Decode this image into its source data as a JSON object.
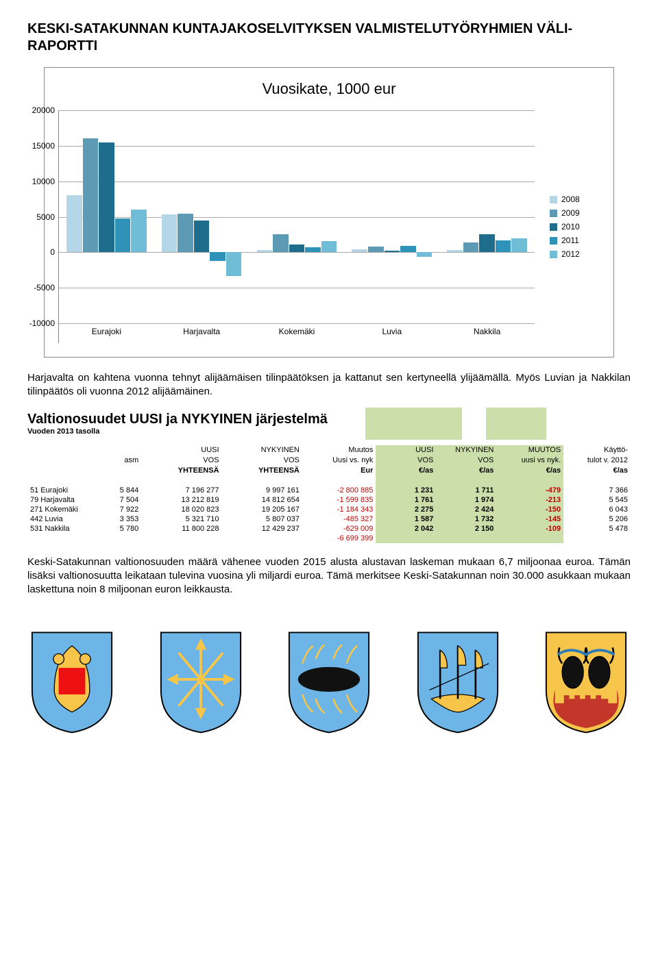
{
  "doc_title": "KESKI-SATAKUNNAN KUNTAJAKOSELVITYKSEN VALMISTELUTYÖRYHMIEN VÄLI-RAPORTTI",
  "chart": {
    "title": "Vuosikate, 1000 eur",
    "ymin": -10000,
    "ymax": 20000,
    "ystep": 5000,
    "categories": [
      "Eurajoki",
      "Harjavalta",
      "Kokemäki",
      "Luvia",
      "Nakkila"
    ],
    "series": [
      {
        "label": "2008",
        "color": "#b5d6e6"
      },
      {
        "label": "2009",
        "color": "#5c9bb3"
      },
      {
        "label": "2010",
        "color": "#1f6d8c"
      },
      {
        "label": "2011",
        "color": "#2f92b8"
      },
      {
        "label": "2012",
        "color": "#6fbdd6"
      }
    ],
    "data": [
      [
        8000,
        16000,
        15500,
        4800,
        6000
      ],
      [
        5300,
        5400,
        4500,
        -1200,
        -3300
      ],
      [
        300,
        2500,
        1100,
        700,
        1600
      ],
      [
        400,
        800,
        200,
        900,
        -600
      ],
      [
        300,
        1400,
        2500,
        1700,
        2000
      ]
    ]
  },
  "para1": "Harjavalta on kahtena vuonna tehnyt alijäämäisen tilinpäätöksen ja kattanut sen kertyneellä ylijäämällä. Myös Luvian ja Nakkilan tilinpäätös oli vuonna 2012 alijäämäinen.",
  "vos": {
    "title": "Valtionosuudet UUSI ja NYKYINEN järjestelmä",
    "subtitle": "Vuoden 2013 tasolla",
    "head": {
      "r1": [
        "",
        "",
        "UUSI",
        "NYKYINEN",
        "Muutos",
        "UUSI",
        "NYKYINEN",
        "MUUTOS",
        "Käyttö-"
      ],
      "r2": [
        "",
        "asm",
        "VOS",
        "VOS",
        "Uusi vs. nyk",
        "VOS",
        "VOS",
        "uusi vs nyk.",
        "tulot v. 2012"
      ],
      "r3": [
        "",
        "",
        "YHTEENSÄ",
        "YHTEENSÄ",
        "Eur",
        "€/as",
        "€/as",
        "€/as",
        "€/as"
      ]
    },
    "rows": [
      {
        "code": "51",
        "muni": "Eurajoki",
        "asm": "5 844",
        "uusi": "7 196 277",
        "nyk": "9 997 161",
        "diff": "-2 800 885",
        "uusi_as": "1 231",
        "nyk_as": "1 711",
        "diff_as": "-479",
        "kt": "7 366"
      },
      {
        "code": "79",
        "muni": "Harjavalta",
        "asm": "7 504",
        "uusi": "13 212 819",
        "nyk": "14 812 654",
        "diff": "-1 599 835",
        "uusi_as": "1 761",
        "nyk_as": "1 974",
        "diff_as": "-213",
        "kt": "5 545"
      },
      {
        "code": "271",
        "muni": "Kokemäki",
        "asm": "7 922",
        "uusi": "18 020 823",
        "nyk": "19 205 167",
        "diff": "-1 184 343",
        "uusi_as": "2 275",
        "nyk_as": "2 424",
        "diff_as": "-150",
        "kt": "6 043"
      },
      {
        "code": "442",
        "muni": "Luvia",
        "asm": "3 353",
        "uusi": "5 321 710",
        "nyk": "5 807 037",
        "diff": "-485 327",
        "uusi_as": "1 587",
        "nyk_as": "1 732",
        "diff_as": "-145",
        "kt": "5 206"
      },
      {
        "code": "531",
        "muni": "Nakkila",
        "asm": "5 780",
        "uusi": "11 800 228",
        "nyk": "12 429 237",
        "diff": "-629 009",
        "uusi_as": "2 042",
        "nyk_as": "2 150",
        "diff_as": "-109",
        "kt": "5 478"
      }
    ],
    "total_diff": "-6 699 399"
  },
  "para2": "Keski-Satakunnan valtionosuuden määrä vähenee vuoden 2015 alusta alustavan laskeman mukaan 6,7 miljoonaa euroa. Tämän lisäksi valtionosuutta leikataan tulevina vuosina yli miljardi euroa. Tämä merkitsee Keski-Satakunnan noin 30.000 asukkaan mukaan laskettuna noin 8 miljoonan euron leikkausta."
}
